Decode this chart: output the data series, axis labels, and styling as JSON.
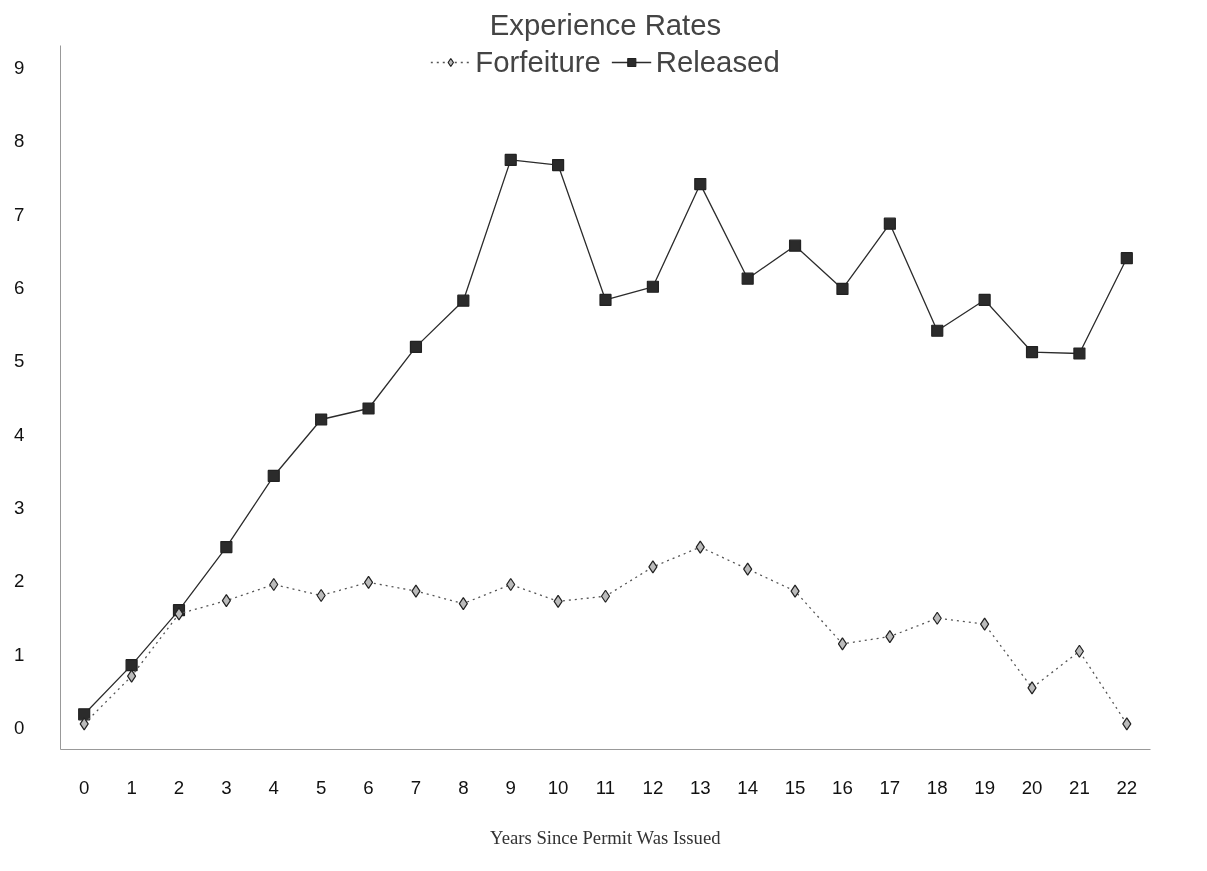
{
  "chart_data": {
    "type": "line",
    "title": "Experience Rates",
    "xlabel": "Years Since Permit Was Issued",
    "x": [
      0,
      1,
      2,
      3,
      4,
      5,
      6,
      7,
      8,
      9,
      10,
      11,
      12,
      13,
      14,
      15,
      16,
      17,
      18,
      19,
      20,
      21,
      22
    ],
    "series": [
      {
        "name": "Forfeiture",
        "color": "#555555",
        "marker": "diamond",
        "line_style": "dotted",
        "values": [
          0.05,
          0.7,
          1.55,
          1.73,
          1.95,
          1.8,
          1.98,
          1.86,
          1.69,
          1.95,
          1.72,
          1.79,
          2.19,
          2.46,
          2.16,
          1.86,
          1.14,
          1.24,
          1.49,
          1.41,
          0.54,
          1.04,
          0.05
        ]
      },
      {
        "name": "Released",
        "color": "#2b2b2b",
        "marker": "square",
        "line_style": "solid",
        "values": [
          0.18,
          0.85,
          1.6,
          2.46,
          3.43,
          4.2,
          4.35,
          5.19,
          5.82,
          7.74,
          7.67,
          5.83,
          6.01,
          7.41,
          6.12,
          6.57,
          5.98,
          6.87,
          5.41,
          5.83,
          5.12,
          5.1,
          6.4
        ]
      }
    ],
    "xlim": [
      -0.5,
      22.5
    ],
    "xticks": [
      0,
      1,
      2,
      3,
      4,
      5,
      6,
      7,
      8,
      9,
      10,
      11,
      12,
      13,
      14,
      15,
      16,
      17,
      18,
      19,
      20,
      21,
      22
    ],
    "ylim": [
      -0.3,
      9.3
    ],
    "yticks": [
      0,
      1,
      2,
      3,
      4,
      5,
      6,
      7,
      8,
      9
    ],
    "grid": false,
    "legend": "top"
  }
}
